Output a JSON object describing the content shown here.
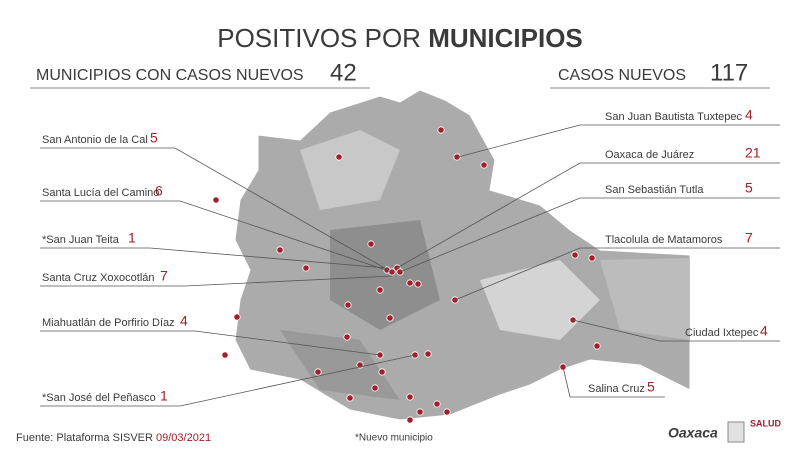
{
  "title": {
    "light": "POSITIVOS POR",
    "bold": "MUNICIPIOS"
  },
  "summary": [
    {
      "label": "MUNICIPIOS CON CASOS NUEVOS",
      "value": 42
    },
    {
      "label": "CASOS NUEVOS",
      "value": 117
    }
  ],
  "municipalities": [
    {
      "name": "San Antonio de la Cal",
      "cases": 5
    },
    {
      "name": "Santa Lucía del Camino",
      "cases": 6
    },
    {
      "name": "*San Juan Teita",
      "cases": 1
    },
    {
      "name": "Santa Cruz Xoxocotlán",
      "cases": 7
    },
    {
      "name": "Miahuatlán de Porfirio Díaz",
      "cases": 4
    },
    {
      "name": "*San José del Peñasco",
      "cases": 1
    },
    {
      "name": "San Juan Bautista Tuxtepec",
      "cases": 4
    },
    {
      "name": "Oaxaca de Juárez",
      "cases": 21
    },
    {
      "name": "San Sebastián Tutla",
      "cases": 5
    },
    {
      "name": "Tlacolula de Matamoros",
      "cases": 7
    },
    {
      "name": "Ciudad Ixtepec",
      "cases": 4
    },
    {
      "name": "Salina Cruz",
      "cases": 5
    }
  ],
  "footer": {
    "source": "Fuente: Plataforma SISVER",
    "date": "09/03/2021",
    "note": "*Nuevo municipio"
  },
  "logos": {
    "state": "Oaxaca",
    "health": "SALUD"
  }
}
